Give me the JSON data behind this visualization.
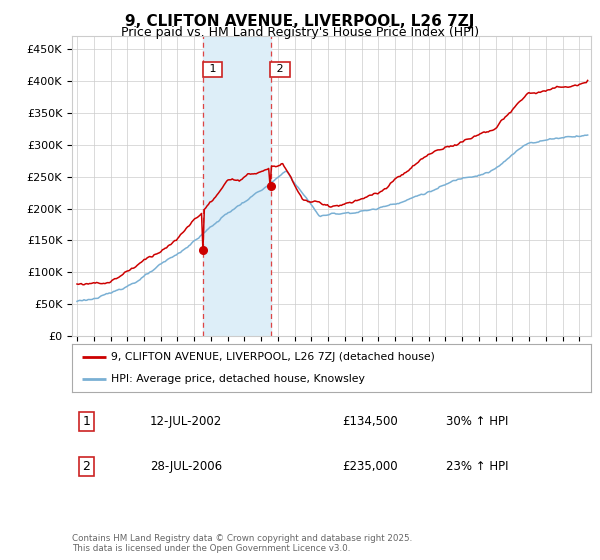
{
  "title": "9, CLIFTON AVENUE, LIVERPOOL, L26 7ZJ",
  "subtitle": "Price paid vs. HM Land Registry's House Price Index (HPI)",
  "ylabel_ticks": [
    "£0",
    "£50K",
    "£100K",
    "£150K",
    "£200K",
    "£250K",
    "£300K",
    "£350K",
    "£400K",
    "£450K"
  ],
  "ytick_values": [
    0,
    50000,
    100000,
    150000,
    200000,
    250000,
    300000,
    350000,
    400000,
    450000
  ],
  "ylim": [
    0,
    470000
  ],
  "xlim_start": 1994.7,
  "xlim_end": 2025.7,
  "sale1_date": 2002.53,
  "sale1_price": 134500,
  "sale2_date": 2006.57,
  "sale2_price": 235000,
  "shade_x1": 2002.53,
  "shade_x2": 2006.57,
  "red_line_color": "#cc0000",
  "blue_line_color": "#7ab0d4",
  "shade_color": "#ddeef8",
  "vline_color": "#dd4444",
  "grid_color": "#cccccc",
  "background_color": "#ffffff",
  "legend_line1": "9, CLIFTON AVENUE, LIVERPOOL, L26 7ZJ (detached house)",
  "legend_line2": "HPI: Average price, detached house, Knowsley",
  "table_row1_num": "1",
  "table_row1_date": "12-JUL-2002",
  "table_row1_price": "£134,500",
  "table_row1_hpi": "30% ↑ HPI",
  "table_row2_num": "2",
  "table_row2_date": "28-JUL-2006",
  "table_row2_price": "£235,000",
  "table_row2_hpi": "23% ↑ HPI",
  "footer": "Contains HM Land Registry data © Crown copyright and database right 2025.\nThis data is licensed under the Open Government Licence v3.0.",
  "title_fontsize": 11,
  "subtitle_fontsize": 9,
  "axis_fontsize": 8
}
